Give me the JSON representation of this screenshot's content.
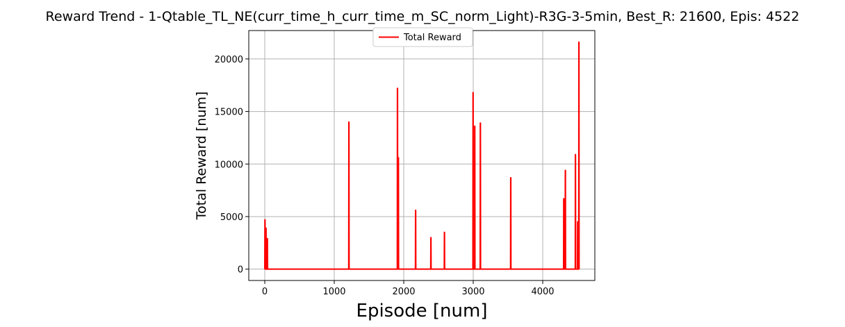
{
  "chart_data": {
    "type": "line",
    "title": "Reward Trend - 1-Qtable_TL_NE(curr_time_h_curr_time_m_SC_norm_Light)-R3G-3-5min, Best_R: 21600, Epis: 4522",
    "xlabel": "Episode [num]",
    "ylabel": "Total Reward [num]",
    "xlim": [
      -230,
      4750
    ],
    "ylim": [
      -1080,
      22700
    ],
    "xticks": [
      0,
      1000,
      2000,
      3000,
      4000
    ],
    "yticks": [
      0,
      5000,
      10000,
      15000,
      20000
    ],
    "grid": true,
    "legend": "upper center",
    "series": [
      {
        "name": "Total Reward",
        "color": "#ff0000",
        "x": [
          0,
          2,
          4,
          6,
          15,
          17,
          19,
          21,
          35,
          37,
          39,
          41,
          1208,
          1210,
          1212,
          1214,
          1907,
          1909,
          1911,
          1913,
          1920,
          1922,
          1924,
          1926,
          2168,
          2170,
          2172,
          2174,
          2388,
          2390,
          2392,
          2394,
          2583,
          2585,
          2587,
          2589,
          2995,
          2997,
          2999,
          3001,
          3019,
          3021,
          3023,
          3025,
          3100,
          3102,
          3104,
          3106,
          3537,
          3539,
          3541,
          3543,
          4300,
          4302,
          4304,
          4306,
          4323,
          4325,
          4327,
          4329,
          4468,
          4470,
          4472,
          4474,
          4500,
          4502,
          4504,
          4506,
          4518,
          4520,
          4522,
          4524
        ],
        "y": [
          0,
          4700,
          4700,
          0,
          0,
          3900,
          3900,
          0,
          0,
          2900,
          2900,
          0,
          0,
          14000,
          14000,
          0,
          0,
          17200,
          17200,
          0,
          0,
          10600,
          10600,
          0,
          0,
          5600,
          5600,
          0,
          0,
          3000,
          3000,
          0,
          0,
          3500,
          3500,
          0,
          0,
          16800,
          16800,
          0,
          0,
          13600,
          13600,
          0,
          0,
          13900,
          13900,
          0,
          0,
          8700,
          8700,
          0,
          0,
          6700,
          6700,
          0,
          0,
          9400,
          9400,
          0,
          0,
          10900,
          10900,
          0,
          0,
          4500,
          4500,
          0,
          0,
          21600,
          21600,
          0
        ]
      }
    ]
  }
}
